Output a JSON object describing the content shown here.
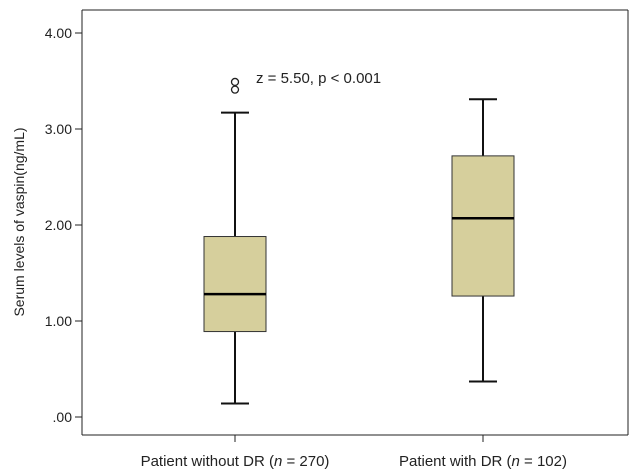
{
  "chart_data": {
    "type": "boxplot",
    "ylabel": "Serum levels of vaspin(ng/mL)",
    "ylim": [
      0,
      4.2
    ],
    "yticks": [
      {
        "value": 0,
        "label": ".00"
      },
      {
        "value": 1,
        "label": "1.00"
      },
      {
        "value": 2,
        "label": "2.00"
      },
      {
        "value": 3,
        "label": "3.00"
      },
      {
        "value": 4,
        "label": "4.00"
      }
    ],
    "annotation": "z = 5.50, p < 0.001",
    "box_color": "#d6cf9c",
    "categories": [
      {
        "label_prefix": "Patient without DR (",
        "label_n": "n",
        "label_suffix": " = 270)",
        "min": 0.14,
        "q1": 0.89,
        "median": 1.28,
        "q3": 1.88,
        "max": 3.17,
        "outliers": [
          3.41,
          3.49
        ]
      },
      {
        "label_prefix": "Patient with DR (",
        "label_n": "n",
        "label_suffix": " = 102)",
        "min": 0.37,
        "q1": 1.26,
        "median": 2.07,
        "q3": 2.72,
        "max": 3.31,
        "outliers": []
      }
    ]
  }
}
